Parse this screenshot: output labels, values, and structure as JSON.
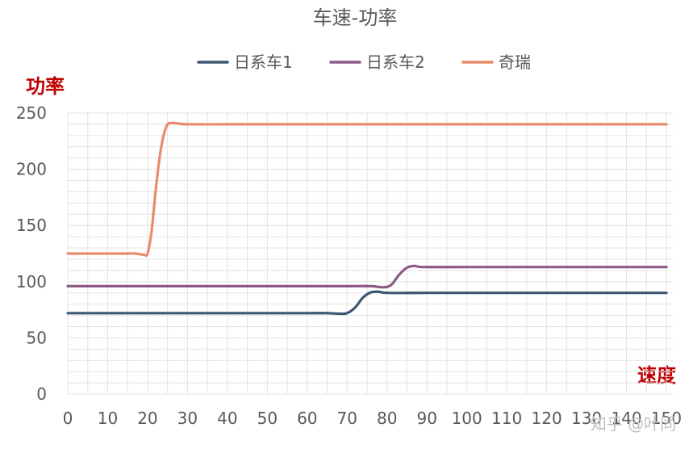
{
  "chart_data": {
    "type": "line",
    "title": "车速-功率",
    "xlabel": "速度",
    "ylabel": "功率",
    "xlim": [
      0,
      150
    ],
    "ylim": [
      0,
      250
    ],
    "x_ticks": [
      0,
      10,
      20,
      30,
      40,
      50,
      60,
      70,
      80,
      90,
      100,
      110,
      120,
      130,
      140,
      150
    ],
    "y_ticks": [
      0,
      50,
      100,
      150,
      200,
      250
    ],
    "grid": true,
    "legend_position": "top",
    "series": [
      {
        "name": "日系车1",
        "color": "#3d5671",
        "points": [
          [
            0,
            72
          ],
          [
            10,
            72
          ],
          [
            20,
            72
          ],
          [
            30,
            72
          ],
          [
            40,
            72
          ],
          [
            50,
            72
          ],
          [
            60,
            72
          ],
          [
            65,
            72
          ],
          [
            68,
            71.5
          ],
          [
            70,
            72
          ],
          [
            72,
            77
          ],
          [
            74,
            86
          ],
          [
            76,
            90.5
          ],
          [
            78,
            91
          ],
          [
            80,
            90
          ],
          [
            90,
            90
          ],
          [
            100,
            90
          ],
          [
            110,
            90
          ],
          [
            120,
            90
          ],
          [
            130,
            90
          ],
          [
            140,
            90
          ],
          [
            150,
            90
          ]
        ]
      },
      {
        "name": "日系车2",
        "color": "#8c5a85",
        "points": [
          [
            0,
            96
          ],
          [
            10,
            96
          ],
          [
            20,
            96
          ],
          [
            30,
            96
          ],
          [
            40,
            96
          ],
          [
            50,
            96
          ],
          [
            60,
            96
          ],
          [
            70,
            96
          ],
          [
            76,
            96
          ],
          [
            79,
            95
          ],
          [
            81,
            97
          ],
          [
            83,
            106
          ],
          [
            85,
            112.5
          ],
          [
            87,
            114
          ],
          [
            89,
            113
          ],
          [
            100,
            113
          ],
          [
            110,
            113
          ],
          [
            120,
            113
          ],
          [
            130,
            113
          ],
          [
            140,
            113
          ],
          [
            150,
            113
          ]
        ]
      },
      {
        "name": "奇瑞",
        "color": "#e98c6c",
        "points": [
          [
            0,
            125
          ],
          [
            5,
            125
          ],
          [
            10,
            125
          ],
          [
            15,
            125
          ],
          [
            17,
            125
          ],
          [
            19,
            124
          ],
          [
            20,
            125
          ],
          [
            21,
            145
          ],
          [
            22,
            180
          ],
          [
            23,
            210
          ],
          [
            24,
            230
          ],
          [
            25,
            240
          ],
          [
            26,
            241
          ],
          [
            27,
            241
          ],
          [
            28,
            240.5
          ],
          [
            30,
            240
          ],
          [
            40,
            240
          ],
          [
            50,
            240
          ],
          [
            60,
            240
          ],
          [
            70,
            240
          ],
          [
            80,
            240
          ],
          [
            90,
            240
          ],
          [
            100,
            240
          ],
          [
            110,
            240
          ],
          [
            120,
            240
          ],
          [
            130,
            240
          ],
          [
            140,
            240
          ],
          [
            150,
            240
          ]
        ]
      }
    ]
  },
  "watermark": "知乎 @叶同"
}
